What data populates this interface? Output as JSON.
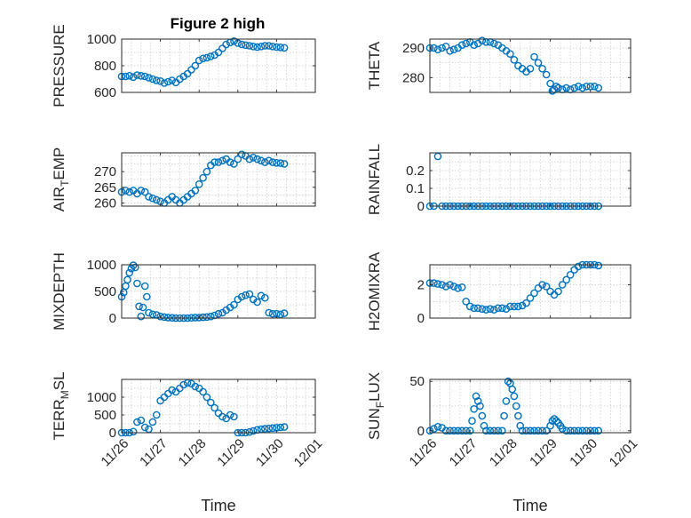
{
  "title": "Figure 2 high",
  "colors": {
    "marker": "#0072BD",
    "axis": "#262626",
    "grid": "#c8c8c8"
  },
  "chart_data": [
    {
      "type": "scatter",
      "ylabel": "PRESSURE",
      "xlabel": "",
      "grid": true,
      "xlim": [
        "11/26",
        "12/01"
      ],
      "ylim": [
        600,
        1000
      ],
      "yticks": [
        600,
        800,
        1000
      ],
      "xticks": [],
      "x": [
        0.0,
        0.1,
        0.2,
        0.3,
        0.4,
        0.5,
        0.6,
        0.7,
        0.8,
        0.9,
        1.0,
        1.1,
        1.2,
        1.3,
        1.4,
        1.5,
        1.6,
        1.7,
        1.8,
        1.9,
        2.0,
        2.1,
        2.2,
        2.3,
        2.4,
        2.5,
        2.6,
        2.7,
        2.8,
        2.9,
        3.0,
        3.1,
        3.2,
        3.3,
        3.4,
        3.5,
        3.6,
        3.7,
        3.8,
        3.9,
        4.0,
        4.1,
        4.2
      ],
      "y": [
        720,
        720,
        725,
        715,
        730,
        725,
        720,
        710,
        700,
        690,
        685,
        670,
        680,
        690,
        675,
        700,
        720,
        740,
        770,
        800,
        840,
        855,
        860,
        870,
        880,
        900,
        930,
        960,
        975,
        985,
        970,
        960,
        955,
        950,
        945,
        940,
        945,
        950,
        950,
        945,
        940,
        938,
        935
      ]
    },
    {
      "type": "scatter",
      "ylabel": "THETA",
      "xlabel": "",
      "grid": true,
      "xlim": [
        "11/26",
        "12/01"
      ],
      "ylim": [
        275,
        293
      ],
      "yticks": [
        280,
        290
      ],
      "xticks": [],
      "x": [
        0.0,
        0.1,
        0.2,
        0.3,
        0.4,
        0.5,
        0.6,
        0.7,
        0.8,
        0.9,
        1.0,
        1.1,
        1.2,
        1.3,
        1.4,
        1.5,
        1.6,
        1.7,
        1.8,
        1.9,
        2.0,
        2.1,
        2.2,
        2.3,
        2.4,
        2.5,
        2.6,
        2.7,
        2.8,
        2.9,
        3.0,
        3.05,
        3.1,
        3.15,
        3.2,
        3.3,
        3.4,
        3.5,
        3.6,
        3.7,
        3.8,
        3.9,
        4.0,
        4.1,
        4.2
      ],
      "y": [
        290,
        290,
        289.5,
        290,
        290.5,
        289,
        289.5,
        290,
        291,
        291.5,
        292,
        291,
        291.5,
        292.5,
        292,
        292,
        291.5,
        291,
        290,
        289,
        288,
        286,
        284,
        283,
        282,
        283,
        287,
        285,
        283,
        281,
        278,
        275.5,
        276,
        277,
        276.5,
        276,
        276.5,
        276,
        276.5,
        277,
        276.5,
        277,
        277,
        277,
        276.5
      ]
    },
    {
      "type": "scatter",
      "ylabel": "AIR_TEMP",
      "xlabel": "",
      "grid": true,
      "xlim": [
        "11/26",
        "12/01"
      ],
      "ylim": [
        259,
        276
      ],
      "yticks": [
        260,
        265,
        270
      ],
      "xticks": [],
      "x": [
        0.0,
        0.1,
        0.2,
        0.3,
        0.4,
        0.5,
        0.6,
        0.7,
        0.8,
        0.9,
        1.0,
        1.1,
        1.2,
        1.3,
        1.4,
        1.5,
        1.6,
        1.7,
        1.8,
        1.9,
        2.0,
        2.1,
        2.2,
        2.3,
        2.4,
        2.5,
        2.6,
        2.7,
        2.8,
        2.9,
        3.0,
        3.1,
        3.2,
        3.3,
        3.4,
        3.5,
        3.6,
        3.7,
        3.8,
        3.9,
        4.0,
        4.1,
        4.2
      ],
      "y": [
        263.5,
        264,
        263.5,
        264,
        263,
        264,
        263.5,
        262,
        261.5,
        261,
        260.5,
        260,
        261,
        262,
        261,
        260,
        261,
        262,
        263,
        264,
        266,
        268,
        270,
        272,
        273,
        273,
        273.5,
        274,
        273,
        272.5,
        274,
        275.5,
        275,
        274,
        274.5,
        274,
        273.5,
        273,
        273.5,
        273,
        272.8,
        272.7,
        272.5
      ]
    },
    {
      "type": "scatter",
      "ylabel": "RAINFALL",
      "xlabel": "",
      "grid": true,
      "xlim": [
        "11/26",
        "12/01"
      ],
      "ylim": [
        0,
        0.3
      ],
      "yticks": [
        0,
        0.1,
        0.2
      ],
      "xticks": [],
      "x": [
        0.0,
        0.1,
        0.2,
        0.3,
        0.4,
        0.5,
        0.6,
        0.7,
        0.8,
        0.9,
        1.0,
        1.1,
        1.2,
        1.3,
        1.4,
        1.5,
        1.6,
        1.7,
        1.8,
        1.9,
        2.0,
        2.1,
        2.2,
        2.3,
        2.4,
        2.5,
        2.6,
        2.7,
        2.8,
        2.9,
        3.0,
        3.1,
        3.2,
        3.3,
        3.4,
        3.5,
        3.6,
        3.7,
        3.8,
        3.9,
        4.0,
        4.1,
        4.2
      ],
      "y": [
        0,
        0,
        0.28,
        0,
        0,
        0,
        0,
        0,
        0,
        0,
        0,
        0,
        0,
        0,
        0,
        0,
        0,
        0,
        0,
        0,
        0,
        0,
        0,
        0,
        0,
        0,
        0,
        0,
        0,
        0,
        0,
        0,
        0,
        0,
        0,
        0,
        0,
        0,
        0,
        0,
        0,
        0,
        0
      ]
    },
    {
      "type": "scatter",
      "ylabel": "MIXDEPTH",
      "xlabel": "",
      "grid": true,
      "xlim": [
        "11/26",
        "12/01"
      ],
      "ylim": [
        0,
        1000
      ],
      "yticks": [
        0,
        500,
        1000
      ],
      "xticks": [],
      "x": [
        0.0,
        0.05,
        0.1,
        0.15,
        0.2,
        0.25,
        0.3,
        0.35,
        0.4,
        0.45,
        0.5,
        0.55,
        0.6,
        0.65,
        0.7,
        0.8,
        0.9,
        1.0,
        1.1,
        1.2,
        1.3,
        1.4,
        1.5,
        1.6,
        1.7,
        1.8,
        1.9,
        2.0,
        2.1,
        2.2,
        2.3,
        2.4,
        2.5,
        2.6,
        2.7,
        2.8,
        2.9,
        3.0,
        3.1,
        3.2,
        3.3,
        3.4,
        3.5,
        3.6,
        3.7,
        3.8,
        3.9,
        4.0,
        4.1,
        4.2
      ],
      "y": [
        400,
        480,
        600,
        720,
        850,
        930,
        990,
        950,
        650,
        220,
        30,
        200,
        600,
        400,
        100,
        70,
        60,
        30,
        20,
        10,
        5,
        0,
        0,
        0,
        0,
        5,
        10,
        10,
        15,
        20,
        30,
        50,
        80,
        100,
        150,
        200,
        250,
        350,
        400,
        430,
        450,
        350,
        300,
        420,
        380,
        100,
        80,
        80,
        70,
        90
      ]
    },
    {
      "type": "scatter",
      "ylabel": "H2OMIXRA",
      "xlabel": "",
      "grid": true,
      "xlim": [
        "11/26",
        "12/01"
      ],
      "ylim": [
        0,
        3.2
      ],
      "yticks": [
        0,
        2
      ],
      "xticks": [],
      "x": [
        0.0,
        0.1,
        0.2,
        0.3,
        0.4,
        0.5,
        0.6,
        0.7,
        0.8,
        0.9,
        1.0,
        1.1,
        1.2,
        1.3,
        1.4,
        1.5,
        1.6,
        1.7,
        1.8,
        1.9,
        2.0,
        2.1,
        2.2,
        2.3,
        2.4,
        2.5,
        2.6,
        2.7,
        2.8,
        2.9,
        3.0,
        3.1,
        3.2,
        3.3,
        3.4,
        3.5,
        3.6,
        3.7,
        3.8,
        3.9,
        4.0,
        4.1,
        4.2
      ],
      "y": [
        2.1,
        2.1,
        2.05,
        2.0,
        1.9,
        2.0,
        1.9,
        1.8,
        1.85,
        1.0,
        0.7,
        0.6,
        0.6,
        0.55,
        0.5,
        0.55,
        0.5,
        0.6,
        0.6,
        0.55,
        0.7,
        0.7,
        0.7,
        0.75,
        0.9,
        1.2,
        1.5,
        1.8,
        2.0,
        1.9,
        1.6,
        1.4,
        1.6,
        2.0,
        2.3,
        2.6,
        2.9,
        3.1,
        3.2,
        3.2,
        3.2,
        3.2,
        3.15
      ]
    },
    {
      "type": "scatter",
      "ylabel": "TERR_MSL",
      "xlabel": "Time",
      "grid": true,
      "xlim": [
        "11/26",
        "12/01"
      ],
      "ylim": [
        0,
        1500
      ],
      "yticks": [
        0,
        500,
        1000
      ],
      "xticks": [
        "11/26",
        "11/27",
        "11/28",
        "11/29",
        "11/30",
        "12/01"
      ],
      "x": [
        0.0,
        0.1,
        0.2,
        0.3,
        0.4,
        0.5,
        0.6,
        0.7,
        0.8,
        0.9,
        1.0,
        1.1,
        1.2,
        1.3,
        1.4,
        1.5,
        1.6,
        1.7,
        1.8,
        1.9,
        2.0,
        2.1,
        2.2,
        2.3,
        2.4,
        2.5,
        2.6,
        2.7,
        2.8,
        2.9,
        3.0,
        3.1,
        3.2,
        3.3,
        3.4,
        3.5,
        3.6,
        3.7,
        3.8,
        3.9,
        4.0,
        4.1,
        4.2
      ],
      "y": [
        0,
        0,
        0,
        30,
        300,
        350,
        150,
        100,
        300,
        500,
        900,
        1000,
        1100,
        1200,
        1150,
        1250,
        1350,
        1400,
        1380,
        1300,
        1250,
        1150,
        1000,
        850,
        700,
        550,
        450,
        400,
        500,
        450,
        0,
        0,
        0,
        20,
        50,
        80,
        100,
        110,
        120,
        130,
        140,
        150,
        160
      ]
    },
    {
      "type": "scatter",
      "ylabel": "SUN_FLUX",
      "xlabel": "Time",
      "grid": true,
      "xlim": [
        "11/26",
        "12/01"
      ],
      "ylim": [
        -2,
        52
      ],
      "yticks": [
        0,
        50
      ],
      "xticks": [
        "11/26",
        "11/27",
        "11/28",
        "11/29",
        "11/30",
        "12/01"
      ],
      "x": [
        0.0,
        0.1,
        0.2,
        0.3,
        0.4,
        0.5,
        0.6,
        0.7,
        0.8,
        0.9,
        1.0,
        1.05,
        1.1,
        1.15,
        1.2,
        1.25,
        1.3,
        1.35,
        1.4,
        1.5,
        1.6,
        1.7,
        1.8,
        1.85,
        1.9,
        1.95,
        2.0,
        2.05,
        2.1,
        2.15,
        2.2,
        2.25,
        2.3,
        2.4,
        2.5,
        2.6,
        2.7,
        2.8,
        2.9,
        3.0,
        3.05,
        3.1,
        3.15,
        3.2,
        3.25,
        3.3,
        3.4,
        3.5,
        3.6,
        3.7,
        3.8,
        3.9,
        4.0,
        4.1,
        4.2
      ],
      "y": [
        0,
        2,
        4,
        3,
        0,
        0,
        0,
        0,
        0,
        0,
        0,
        10,
        22,
        35,
        30,
        25,
        15,
        5,
        0,
        0,
        0,
        0,
        0,
        15,
        30,
        50,
        48,
        42,
        35,
        25,
        15,
        5,
        0,
        0,
        0,
        0,
        0,
        0,
        0,
        5,
        10,
        12,
        10,
        8,
        5,
        2,
        0,
        0,
        0,
        0,
        0,
        0,
        0,
        0,
        0
      ]
    }
  ]
}
